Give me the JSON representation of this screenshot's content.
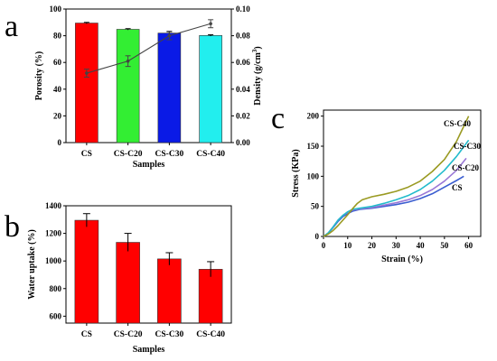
{
  "chart_data": [
    {
      "panel": "a",
      "type": "bar",
      "categories": [
        "CS",
        "CS-C20",
        "CS-C30",
        "CS-C40"
      ],
      "series": [
        {
          "values": [
            89.5,
            84.8,
            82.0,
            80.2
          ],
          "errors": [
            0.5,
            0.5,
            1.3,
            0.5
          ],
          "colors": [
            "#ff0000",
            "#33ee33",
            "#0a1ae6",
            "#22eeee"
          ]
        },
        {
          "type": "line",
          "values": [
            0.052,
            0.061,
            0.08,
            0.089
          ],
          "errors": [
            0.003,
            0.004,
            0.003,
            0.003
          ],
          "axis": "right",
          "color": "#444444"
        }
      ],
      "xlabel": "Samples",
      "ylabel": "Porosity (%)",
      "ylabel_right": "Density (g/cm",
      "ylabel_right_sup": "3",
      "ylabel_right_tail": ")",
      "ylim": [
        0,
        100
      ],
      "ylim_right": [
        0,
        0.1
      ],
      "yticks": [
        "0",
        "20",
        "40",
        "60",
        "80",
        "100"
      ],
      "yticks_right": [
        "0.00",
        "0.02",
        "0.04",
        "0.06",
        "0.08",
        "0.10"
      ]
    },
    {
      "panel": "b",
      "type": "bar",
      "categories": [
        "CS",
        "CS-C20",
        "CS-C30",
        "CS-C40"
      ],
      "series": [
        {
          "values": [
            1295,
            1135,
            1015,
            940
          ],
          "errors": [
            48,
            65,
            45,
            55
          ],
          "color": "#ff0000"
        }
      ],
      "xlabel": "Samples",
      "ylabel": "Water uptake (%)",
      "ylim": [
        550,
        1400
      ],
      "yticks": [
        "600",
        "800",
        "1000",
        "1200",
        "1400"
      ]
    },
    {
      "panel": "c",
      "type": "line",
      "xlabel": "Strain (%)",
      "ylabel": "Stress (KPa)",
      "xlim": [
        0,
        65
      ],
      "ylim": [
        0,
        210
      ],
      "xticks": [
        "0",
        "10",
        "20",
        "30",
        "40",
        "50",
        "60"
      ],
      "yticks": [
        "0",
        "50",
        "100",
        "150",
        "200"
      ],
      "series": [
        {
          "name": "CS",
          "color": "#3a5dd0",
          "x": [
            0,
            2,
            4,
            6,
            8,
            10,
            12,
            15,
            20,
            25,
            30,
            35,
            40,
            45,
            50,
            55,
            58
          ],
          "y": [
            0,
            5,
            15,
            25,
            33,
            38,
            42,
            45,
            47,
            50,
            53,
            57,
            63,
            71,
            82,
            93,
            100
          ]
        },
        {
          "name": "CS-C20",
          "color": "#9a78d6",
          "x": [
            0,
            2,
            4,
            6,
            8,
            10,
            12,
            15,
            20,
            25,
            30,
            35,
            40,
            45,
            50,
            55,
            59
          ],
          "y": [
            0,
            6,
            16,
            27,
            35,
            40,
            44,
            46,
            48,
            52,
            56,
            61,
            68,
            78,
            92,
            110,
            130
          ]
        },
        {
          "name": "CS-C30",
          "color": "#22bbcc",
          "x": [
            0,
            2,
            4,
            6,
            8,
            10,
            12,
            15,
            20,
            25,
            30,
            35,
            40,
            45,
            50,
            55,
            60
          ],
          "y": [
            0,
            6,
            16,
            27,
            35,
            41,
            45,
            47,
            50,
            55,
            61,
            68,
            78,
            92,
            110,
            133,
            160
          ]
        },
        {
          "name": "CS-C40",
          "color": "#9a9a22",
          "x": [
            0,
            2,
            4,
            6,
            8,
            10,
            12,
            14,
            16,
            20,
            25,
            30,
            35,
            40,
            45,
            50,
            55,
            60
          ],
          "y": [
            0,
            4,
            10,
            18,
            27,
            36,
            46,
            55,
            61,
            66,
            70,
            75,
            82,
            92,
            108,
            128,
            158,
            200
          ]
        }
      ],
      "labels": [
        "CS-C40",
        "CS-C30",
        "CS-C20",
        "CS"
      ]
    }
  ],
  "panel_letters": {
    "a": "a",
    "b": "b",
    "c": "c"
  }
}
